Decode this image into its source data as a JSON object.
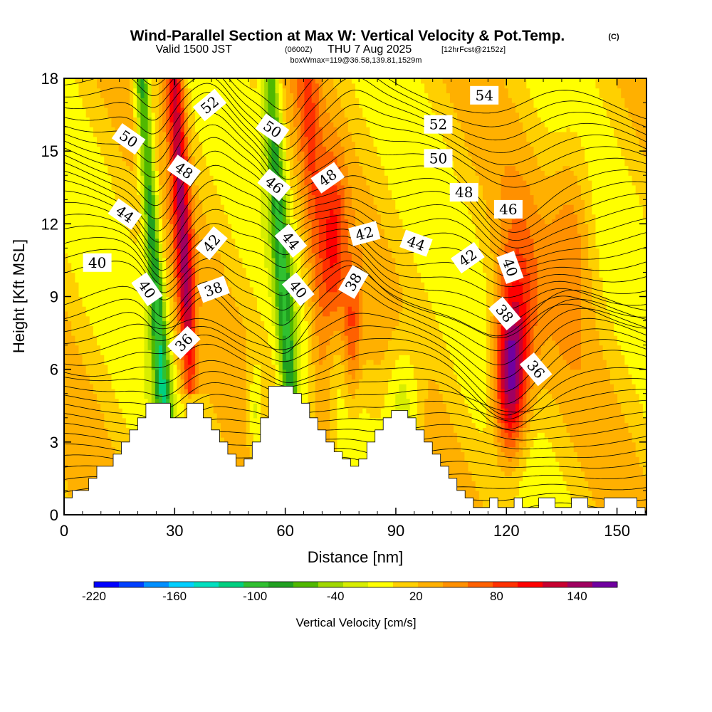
{
  "title": {
    "main": "Wind-Parallel Section at Max W: Vertical Velocity & Pot.Temp.",
    "copyright": "(C)",
    "valid_prefix": "Valid 1500 JST",
    "valid_utc": "(0600Z)",
    "valid_day": "THU 7 Aug 2025",
    "forecast": "[12hrFcst@2152z]",
    "box": "boxWmax=119@36.58,139.81,1529m"
  },
  "chart_data": {
    "type": "heatmap",
    "xlabel": "Distance [nm]",
    "ylabel": "Height [Kft MSL]",
    "xlim": [
      0,
      158
    ],
    "ylim": [
      0,
      18
    ],
    "x_ticks": [
      0,
      30,
      60,
      90,
      120,
      150
    ],
    "y_ticks": [
      0,
      3,
      6,
      9,
      12,
      15,
      18
    ],
    "colorbar": {
      "title": "Vertical Velocity [cm/s]",
      "range": [
        -220,
        170
      ],
      "tick_values": [
        -220,
        -160,
        -100,
        -40,
        20,
        80,
        140
      ],
      "tick_labels": [
        "-220",
        "-160",
        "-100",
        "-40",
        "20",
        "80",
        "140"
      ],
      "colors": [
        "#0000ff",
        "#0040ff",
        "#0090ff",
        "#00d0ff",
        "#00e0c0",
        "#00d080",
        "#30c030",
        "#20a020",
        "#50b800",
        "#a0d800",
        "#d8ee00",
        "#ffff00",
        "#ffd000",
        "#ffb000",
        "#ff9000",
        "#ff6000",
        "#ff3000",
        "#ff0000",
        "#c80030",
        "#a00060",
        "#7000a0"
      ]
    },
    "terrain_kft": [
      [
        0,
        0.7
      ],
      [
        1,
        0.7
      ],
      [
        1,
        1
      ],
      [
        3,
        1
      ],
      [
        3,
        1.5
      ],
      [
        4,
        1.5
      ],
      [
        4,
        2
      ],
      [
        6,
        2
      ],
      [
        6,
        2.5
      ],
      [
        7,
        2.5
      ],
      [
        7,
        3
      ],
      [
        8,
        3
      ],
      [
        8,
        3.5
      ],
      [
        9,
        3.5
      ],
      [
        9,
        4
      ],
      [
        10,
        4
      ],
      [
        10,
        4.6
      ],
      [
        13,
        4.6
      ],
      [
        13,
        4
      ],
      [
        15,
        4
      ],
      [
        15,
        4.6
      ],
      [
        17,
        4.6
      ],
      [
        17,
        4
      ],
      [
        18,
        4
      ],
      [
        18,
        3.5
      ],
      [
        19,
        3.5
      ],
      [
        19,
        3
      ],
      [
        20,
        3
      ],
      [
        20,
        2.5
      ],
      [
        21,
        2.5
      ],
      [
        21,
        2
      ],
      [
        22,
        2
      ],
      [
        22,
        2.3
      ],
      [
        23,
        2.3
      ],
      [
        23,
        3
      ],
      [
        24,
        3
      ],
      [
        24,
        4
      ],
      [
        25,
        4
      ],
      [
        25,
        5.3
      ],
      [
        28,
        5.3
      ],
      [
        28,
        5
      ],
      [
        29,
        5
      ],
      [
        29,
        4.6
      ],
      [
        30,
        4.6
      ],
      [
        30,
        4
      ],
      [
        31,
        4
      ],
      [
        31,
        3.5
      ],
      [
        32,
        3.5
      ],
      [
        32,
        3
      ],
      [
        33,
        3
      ],
      [
        33,
        2.6
      ],
      [
        34,
        2.6
      ],
      [
        34,
        2.3
      ],
      [
        35,
        2.3
      ],
      [
        35,
        2
      ],
      [
        36,
        2
      ],
      [
        36,
        2.3
      ],
      [
        37,
        2.3
      ],
      [
        37,
        3
      ],
      [
        38,
        3
      ],
      [
        38,
        3.5
      ],
      [
        39,
        3.5
      ],
      [
        39,
        4
      ],
      [
        40,
        4
      ],
      [
        40,
        4.3
      ],
      [
        42,
        4.3
      ],
      [
        42,
        4
      ],
      [
        43,
        4
      ],
      [
        43,
        3.5
      ],
      [
        44,
        3.5
      ],
      [
        44,
        3
      ],
      [
        45,
        3
      ],
      [
        45,
        2.5
      ],
      [
        46,
        2.5
      ],
      [
        46,
        2
      ],
      [
        47,
        2
      ],
      [
        47,
        1.5
      ],
      [
        48,
        1.5
      ],
      [
        48,
        1
      ],
      [
        49,
        1
      ],
      [
        49,
        0.7
      ],
      [
        50,
        0.7
      ],
      [
        50,
        0.3
      ],
      [
        52,
        0.3
      ],
      [
        52,
        0.7
      ],
      [
        53,
        0.7
      ],
      [
        53,
        0.3
      ],
      [
        55,
        0.3
      ],
      [
        55,
        0.7
      ],
      [
        56,
        0.7
      ],
      [
        56,
        0.3
      ],
      [
        58,
        0.3
      ],
      [
        58,
        0.7
      ],
      [
        60,
        0.7
      ],
      [
        60,
        0.3
      ],
      [
        62,
        0.3
      ],
      [
        62,
        0.7
      ],
      [
        64,
        0.7
      ],
      [
        64,
        0.3
      ],
      [
        66,
        0.3
      ],
      [
        66,
        0.7
      ],
      [
        70,
        0.7
      ],
      [
        70,
        0.3
      ],
      [
        71,
        0.3
      ],
      [
        71,
        0
      ]
    ],
    "dx_nm_per_grid": 2.22,
    "theta_contour_labels": [
      {
        "text": "40",
        "x": 9,
        "y": 10.4,
        "rot": 0
      },
      {
        "text": "50",
        "x": 17.5,
        "y": 15.5,
        "rot": 35
      },
      {
        "text": "44",
        "x": 16.5,
        "y": 12.4,
        "rot": 35
      },
      {
        "text": "40",
        "x": 22.5,
        "y": 9.3,
        "rot": 55
      },
      {
        "text": "48",
        "x": 32.5,
        "y": 14.2,
        "rot": 35
      },
      {
        "text": "52",
        "x": 39.5,
        "y": 16.9,
        "rot": -40
      },
      {
        "text": "42",
        "x": 40,
        "y": 11.2,
        "rot": -50
      },
      {
        "text": "38",
        "x": 40.5,
        "y": 9.3,
        "rot": -20
      },
      {
        "text": "36",
        "x": 32.5,
        "y": 7.1,
        "rot": -45
      },
      {
        "text": "50",
        "x": 56.5,
        "y": 15.9,
        "rot": 35
      },
      {
        "text": "46",
        "x": 57,
        "y": 13.6,
        "rot": 40
      },
      {
        "text": "44",
        "x": 61.5,
        "y": 11.3,
        "rot": 50
      },
      {
        "text": "40",
        "x": 63.5,
        "y": 9.3,
        "rot": 50
      },
      {
        "text": "48",
        "x": 71.5,
        "y": 13.9,
        "rot": -35
      },
      {
        "text": "42",
        "x": 81.5,
        "y": 11.6,
        "rot": -15
      },
      {
        "text": "38",
        "x": 78.5,
        "y": 9.6,
        "rot": -60
      },
      {
        "text": "44",
        "x": 95.5,
        "y": 11.2,
        "rot": 20
      },
      {
        "text": "54",
        "x": 114,
        "y": 17.3,
        "rot": 0
      },
      {
        "text": "52",
        "x": 101.5,
        "y": 16.1,
        "rot": 0
      },
      {
        "text": "50",
        "x": 101.5,
        "y": 14.7,
        "rot": 0
      },
      {
        "text": "48",
        "x": 108.5,
        "y": 13.3,
        "rot": 0
      },
      {
        "text": "46",
        "x": 120.5,
        "y": 12.6,
        "rot": 0
      },
      {
        "text": "42",
        "x": 109.5,
        "y": 10.6,
        "rot": -35
      },
      {
        "text": "40",
        "x": 121,
        "y": 10.2,
        "rot": 70
      },
      {
        "text": "38",
        "x": 119.5,
        "y": 8.3,
        "rot": 50
      },
      {
        "text": "36",
        "x": 128,
        "y": 6.0,
        "rot": 50
      }
    ]
  }
}
